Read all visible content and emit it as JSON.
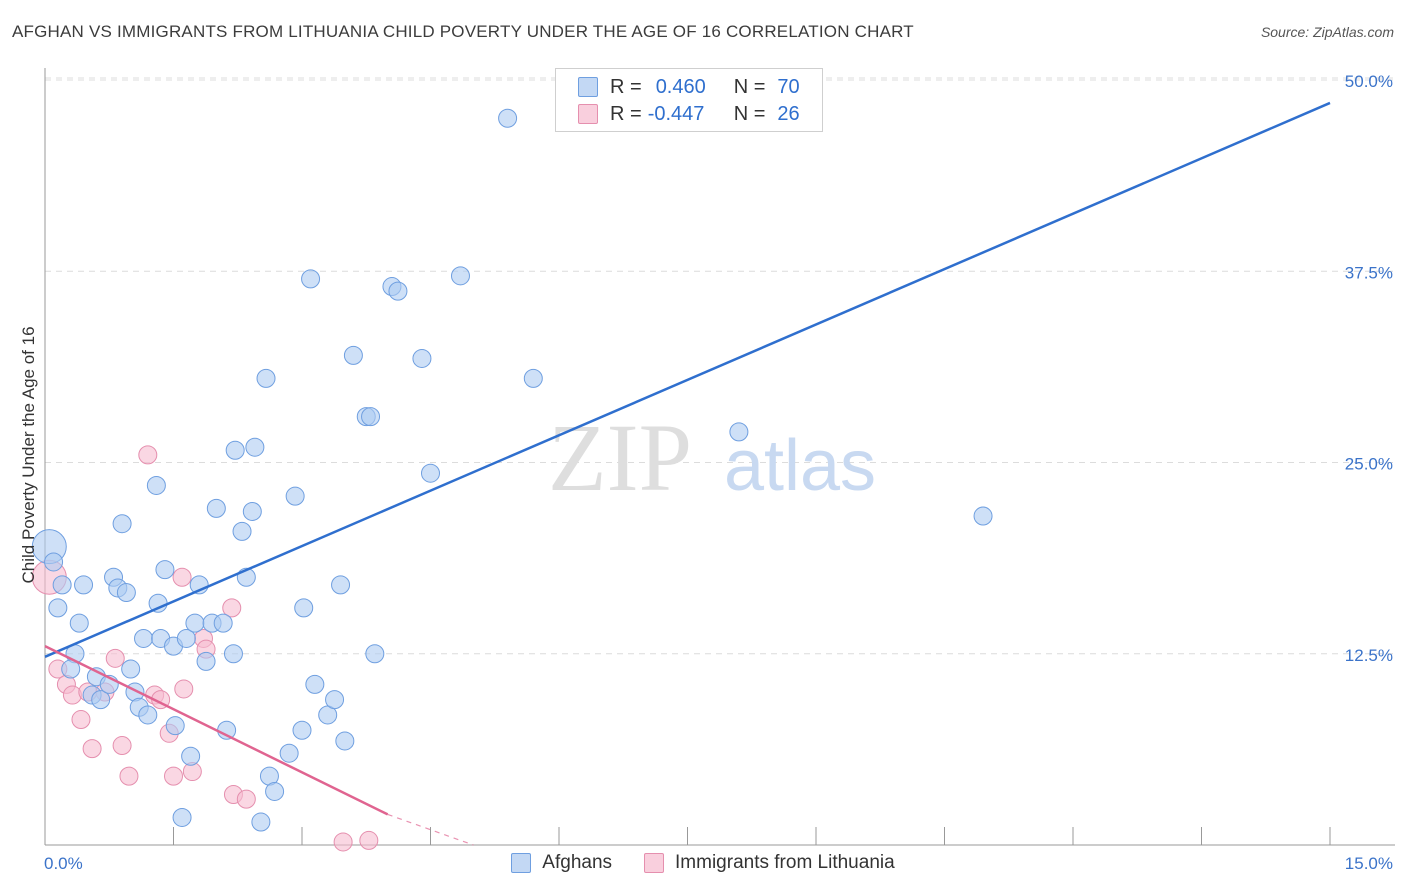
{
  "title": "AFGHAN VS IMMIGRANTS FROM LITHUANIA CHILD POVERTY UNDER THE AGE OF 16 CORRELATION CHART",
  "source": "Source: ZipAtlas.com",
  "watermark": {
    "zip": "ZIP",
    "atlas": "atlas"
  },
  "legend": {
    "r_label": "R =",
    "n_label": "N =",
    "series1": {
      "r": "0.460",
      "n": "70"
    },
    "series2": {
      "r": "-0.447",
      "n": "26"
    }
  },
  "colors": {
    "blue_fill": "#aecbf2",
    "blue_stroke": "#6f9fe0",
    "blue_line": "#2f6fce",
    "pink_fill": "#f6bdd0",
    "pink_stroke": "#e58fae",
    "pink_line": "#e06490",
    "axis_label": "#3b73c9",
    "grid": "#dcdcdc"
  },
  "chart_data": {
    "type": "scatter",
    "xlabel": "",
    "ylabel": "Child Poverty Under the Age of 16",
    "xlim": [
      0,
      15
    ],
    "ylim": [
      0,
      50
    ],
    "x_tick_labels": [
      "0.0%",
      "15.0%"
    ],
    "y_ticks": [
      12.5,
      25.0,
      37.5,
      50.0
    ],
    "y_tick_labels": [
      "12.5%",
      "25.0%",
      "37.5%",
      "50.0%"
    ],
    "series": [
      {
        "name": "Afghans",
        "r": 0.46,
        "n": 70,
        "trendline": {
          "x": [
            0,
            15
          ],
          "y": [
            12.3,
            48.5
          ]
        },
        "points": [
          {
            "x": 0.05,
            "y": 19.5,
            "s": "L"
          },
          {
            "x": 0.1,
            "y": 18.5
          },
          {
            "x": 0.2,
            "y": 17.0
          },
          {
            "x": 0.15,
            "y": 15.5
          },
          {
            "x": 0.4,
            "y": 14.5
          },
          {
            "x": 0.35,
            "y": 12.5
          },
          {
            "x": 0.3,
            "y": 11.5
          },
          {
            "x": 0.45,
            "y": 17.0
          },
          {
            "x": 0.55,
            "y": 9.8
          },
          {
            "x": 0.6,
            "y": 11.0
          },
          {
            "x": 0.65,
            "y": 9.5
          },
          {
            "x": 0.75,
            "y": 10.5
          },
          {
            "x": 0.8,
            "y": 17.5
          },
          {
            "x": 0.85,
            "y": 16.8
          },
          {
            "x": 0.9,
            "y": 21.0
          },
          {
            "x": 0.95,
            "y": 16.5
          },
          {
            "x": 1.0,
            "y": 11.5
          },
          {
            "x": 1.05,
            "y": 10.0
          },
          {
            "x": 1.1,
            "y": 9.0
          },
          {
            "x": 1.15,
            "y": 13.5
          },
          {
            "x": 1.2,
            "y": 8.5
          },
          {
            "x": 1.3,
            "y": 23.5
          },
          {
            "x": 1.32,
            "y": 15.8
          },
          {
            "x": 1.35,
            "y": 13.5
          },
          {
            "x": 1.4,
            "y": 18.0
          },
          {
            "x": 1.5,
            "y": 13.0
          },
          {
            "x": 1.52,
            "y": 7.8
          },
          {
            "x": 1.6,
            "y": 1.8
          },
          {
            "x": 1.65,
            "y": 13.5
          },
          {
            "x": 1.7,
            "y": 5.8
          },
          {
            "x": 1.75,
            "y": 14.5
          },
          {
            "x": 1.8,
            "y": 17.0
          },
          {
            "x": 1.88,
            "y": 12.0
          },
          {
            "x": 1.95,
            "y": 14.5
          },
          {
            "x": 2.0,
            "y": 22.0
          },
          {
            "x": 2.08,
            "y": 14.5
          },
          {
            "x": 2.12,
            "y": 7.5
          },
          {
            "x": 2.2,
            "y": 12.5
          },
          {
            "x": 2.22,
            "y": 25.8
          },
          {
            "x": 2.3,
            "y": 20.5
          },
          {
            "x": 2.35,
            "y": 17.5
          },
          {
            "x": 2.42,
            "y": 21.8
          },
          {
            "x": 2.45,
            "y": 26.0
          },
          {
            "x": 2.52,
            "y": 1.5
          },
          {
            "x": 2.58,
            "y": 30.5
          },
          {
            "x": 2.62,
            "y": 4.5
          },
          {
            "x": 2.68,
            "y": 3.5
          },
          {
            "x": 2.85,
            "y": 6.0
          },
          {
            "x": 2.92,
            "y": 22.8
          },
          {
            "x": 3.0,
            "y": 7.5
          },
          {
            "x": 3.02,
            "y": 15.5
          },
          {
            "x": 3.1,
            "y": 37.0
          },
          {
            "x": 3.15,
            "y": 10.5
          },
          {
            "x": 3.3,
            "y": 8.5
          },
          {
            "x": 3.38,
            "y": 9.5
          },
          {
            "x": 3.45,
            "y": 17.0
          },
          {
            "x": 3.5,
            "y": 6.8
          },
          {
            "x": 3.6,
            "y": 32.0
          },
          {
            "x": 3.75,
            "y": 28.0
          },
          {
            "x": 3.8,
            "y": 28.0
          },
          {
            "x": 3.85,
            "y": 12.5
          },
          {
            "x": 4.05,
            "y": 36.5
          },
          {
            "x": 4.12,
            "y": 36.2
          },
          {
            "x": 4.4,
            "y": 31.8
          },
          {
            "x": 4.5,
            "y": 24.3
          },
          {
            "x": 4.85,
            "y": 37.2
          },
          {
            "x": 5.4,
            "y": 47.5
          },
          {
            "x": 5.7,
            "y": 30.5
          },
          {
            "x": 8.1,
            "y": 27.0
          },
          {
            "x": 10.95,
            "y": 21.5
          }
        ]
      },
      {
        "name": "Immigrants from Lithuania",
        "r": -0.447,
        "n": 26,
        "trendline": {
          "x": [
            0,
            4.0
          ],
          "y": [
            13.0,
            2.0
          ]
        },
        "trendline_ext": {
          "x": [
            4.0,
            5.0
          ],
          "y": [
            2.0,
            0
          ]
        },
        "points": [
          {
            "x": 0.05,
            "y": 17.5,
            "s": "L"
          },
          {
            "x": 0.15,
            "y": 11.5
          },
          {
            "x": 0.25,
            "y": 10.5
          },
          {
            "x": 0.32,
            "y": 9.8
          },
          {
            "x": 0.42,
            "y": 8.2
          },
          {
            "x": 0.5,
            "y": 10.0
          },
          {
            "x": 0.55,
            "y": 6.3
          },
          {
            "x": 0.7,
            "y": 10.0
          },
          {
            "x": 0.82,
            "y": 12.2
          },
          {
            "x": 0.9,
            "y": 6.5
          },
          {
            "x": 0.98,
            "y": 4.5
          },
          {
            "x": 1.2,
            "y": 25.5
          },
          {
            "x": 1.28,
            "y": 9.8
          },
          {
            "x": 1.35,
            "y": 9.5
          },
          {
            "x": 1.45,
            "y": 7.3
          },
          {
            "x": 1.5,
            "y": 4.5
          },
          {
            "x": 1.6,
            "y": 17.5
          },
          {
            "x": 1.62,
            "y": 10.2
          },
          {
            "x": 1.72,
            "y": 4.8
          },
          {
            "x": 1.85,
            "y": 13.5
          },
          {
            "x": 1.88,
            "y": 12.8
          },
          {
            "x": 2.18,
            "y": 15.5
          },
          {
            "x": 2.2,
            "y": 3.3
          },
          {
            "x": 2.35,
            "y": 3.0
          },
          {
            "x": 3.48,
            "y": 0.2
          },
          {
            "x": 3.78,
            "y": 0.3
          }
        ]
      }
    ],
    "legend_position": "top-center"
  }
}
